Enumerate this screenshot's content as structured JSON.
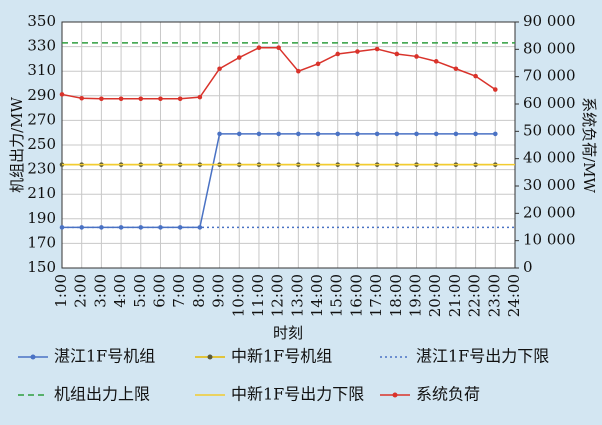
{
  "chart_data": {
    "type": "line",
    "xlabel": "时刻",
    "ylabel": "机组出力/MW",
    "y2label": "系统负荷/MW",
    "categories": [
      "1:00",
      "2:00",
      "3:00",
      "4:00",
      "5:00",
      "6:00",
      "7:00",
      "8:00",
      "9:00",
      "10:00",
      "11:00",
      "12:00",
      "13:00",
      "14:00",
      "15:00",
      "16:00",
      "17:00",
      "18:00",
      "19:00",
      "20:00",
      "21:00",
      "22:00",
      "23:00",
      "24:00"
    ],
    "ylim": [
      150,
      350
    ],
    "yticks": [
      150,
      170,
      190,
      210,
      230,
      250,
      270,
      290,
      310,
      330,
      350
    ],
    "y2lim": [
      0,
      90000
    ],
    "y2ticks": [
      0,
      {
        "value": 10000,
        "label": "10 000"
      },
      {
        "value": 20000,
        "label": "20 000"
      },
      {
        "value": 30000,
        "label": "30 000"
      },
      {
        "value": 40000,
        "label": "40 000"
      },
      {
        "value": 50000,
        "label": "50 000"
      },
      {
        "value": 60000,
        "label": "60 000"
      },
      {
        "value": 70000,
        "label": "70 000"
      },
      {
        "value": 80000,
        "label": "80 000"
      },
      {
        "value": 90000,
        "label": "90 000"
      }
    ],
    "grid": true,
    "legend": "bottom",
    "series": [
      {
        "name": "湛江1F号机组",
        "color": "#4a72c4",
        "marker": true,
        "dash": "solid",
        "values": [
          183,
          183,
          183,
          183,
          183,
          183,
          183,
          183,
          259,
          259,
          259,
          259,
          259,
          259,
          259,
          259,
          259,
          259,
          259,
          259,
          259,
          259,
          259,
          null
        ]
      },
      {
        "name": "中新1F号机组",
        "color": "#e6b800",
        "marker_color": "#5a5a3a",
        "marker": true,
        "dash": "solid",
        "values": [
          234,
          234,
          234,
          234,
          234,
          234,
          234,
          234,
          234,
          234,
          234,
          234,
          234,
          234,
          234,
          234,
          234,
          234,
          234,
          234,
          234,
          234,
          234,
          null
        ]
      },
      {
        "name": "湛江1F号出力下限",
        "color": "#4a72c4",
        "marker": false,
        "dash": "dotted",
        "values": [
          183,
          183,
          183,
          183,
          183,
          183,
          183,
          183,
          183,
          183,
          183,
          183,
          183,
          183,
          183,
          183,
          183,
          183,
          183,
          183,
          183,
          183,
          183,
          183
        ]
      },
      {
        "name": "机组出力上限",
        "color": "#2e9e3e",
        "marker": false,
        "dash": "dashed",
        "values": [
          333,
          333,
          333,
          333,
          333,
          333,
          333,
          333,
          333,
          333,
          333,
          333,
          333,
          333,
          333,
          333,
          333,
          333,
          333,
          333,
          333,
          333,
          333,
          333
        ]
      },
      {
        "name": "中新1F号出力下限",
        "color": "#f2cc30",
        "marker": false,
        "dash": "solid",
        "values": [
          234,
          234,
          234,
          234,
          234,
          234,
          234,
          234,
          234,
          234,
          234,
          234,
          234,
          234,
          234,
          234,
          234,
          234,
          234,
          234,
          234,
          234,
          234,
          234
        ]
      },
      {
        "name": "系统负荷",
        "color": "#d9332b",
        "marker": true,
        "dash": "solid",
        "axis": "y2",
        "values": [
          63500,
          62100,
          61900,
          61900,
          61900,
          61900,
          61900,
          62500,
          72900,
          77000,
          80600,
          80600,
          72000,
          74700,
          78300,
          79200,
          80100,
          78300,
          77400,
          75600,
          72900,
          70200,
          65300,
          null
        ]
      }
    ]
  }
}
